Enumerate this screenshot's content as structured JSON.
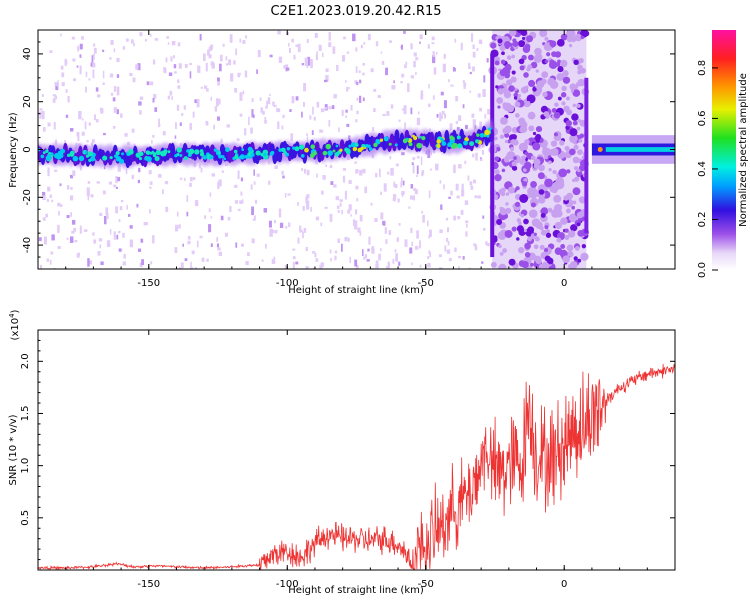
{
  "figure_title": "C2E1.2023.019.20.42.R15",
  "chart_data": [
    {
      "type": "heatmap",
      "title": "",
      "xlabel": "Height of straight line (km)",
      "ylabel": "Frequency (Hz)",
      "xlim": [
        -190,
        40
      ],
      "ylim": [
        -50,
        50
      ],
      "x_ticks": [
        -150,
        -100,
        -50,
        0
      ],
      "x_tick_labels": [
        "-150",
        "-100",
        "-50",
        "0"
      ],
      "y_ticks": [
        -40,
        -20,
        0,
        20,
        40
      ],
      "y_tick_labels": [
        "-40",
        "-20",
        "0",
        "20",
        "40"
      ],
      "colorbar": {
        "label": "Normalized spectral amplitude",
        "range": [
          0,
          0.95
        ],
        "ticks": [
          0.0,
          0.2,
          0.4,
          0.6,
          0.8
        ],
        "tick_labels": [
          "0.0",
          "0.2",
          "0.4",
          "0.6",
          "0.8"
        ],
        "colormap": "rainbow (white → violet → blue → cyan → green → yellow → orange → red → magenta)"
      },
      "features": {
        "main_ridge_x": [
          -190,
          -160,
          -140,
          -120,
          -100,
          -80,
          -60,
          -40,
          -30,
          -26
        ],
        "main_ridge_freq_hz": [
          -2,
          -3,
          -2,
          -2,
          -1,
          0,
          4,
          3,
          5,
          8
        ],
        "broadband_noise_x_range": [
          -26,
          8
        ],
        "secondary_ridge_x_range": [
          10,
          40
        ],
        "secondary_ridge_freq_hz": 0
      }
    },
    {
      "type": "line",
      "title": "",
      "xlabel": "Height of straight line (km)",
      "ylabel": "SNR (10 * v/v)",
      "y_scale_label": "(x10^4)",
      "xlim": [
        -190,
        40
      ],
      "ylim": [
        0,
        2.3
      ],
      "x_ticks": [
        -150,
        -100,
        -50,
        0
      ],
      "x_tick_labels": [
        "-150",
        "-100",
        "-50",
        "0"
      ],
      "y_ticks": [
        0.5,
        1.0,
        1.5,
        2.0
      ],
      "y_tick_labels": [
        "0.5",
        "1.0",
        "1.5",
        "2.0"
      ],
      "series": [
        {
          "color": "#ee3333",
          "x": [
            -190,
            -180,
            -170,
            -162,
            -155,
            -148,
            -140,
            -130,
            -120,
            -110,
            -105,
            -100,
            -95,
            -90,
            -85,
            -80,
            -75,
            -70,
            -65,
            -60,
            -57,
            -55,
            -50,
            -45,
            -40,
            -35,
            -30,
            -28,
            -25,
            -20,
            -15,
            -13,
            -10,
            -5,
            0,
            3,
            8,
            12,
            20,
            30,
            40
          ],
          "y": [
            0.02,
            0.02,
            0.03,
            0.06,
            0.03,
            0.04,
            0.03,
            0.02,
            0.03,
            0.05,
            0.15,
            0.18,
            0.12,
            0.25,
            0.35,
            0.3,
            0.3,
            0.28,
            0.3,
            0.25,
            0.15,
            0.05,
            0.25,
            0.4,
            0.6,
            0.7,
            1.0,
            1.2,
            0.9,
            1.0,
            1.05,
            1.6,
            1.1,
            1.05,
            1.2,
            1.35,
            1.4,
            1.55,
            1.75,
            1.88,
            1.93
          ]
        }
      ]
    }
  ]
}
